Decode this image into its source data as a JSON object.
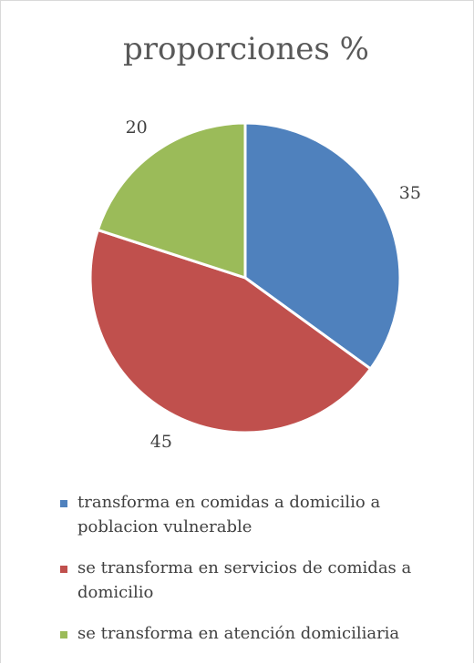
{
  "chart_data": {
    "type": "pie",
    "title": "proporciones %",
    "labels": [
      "transforma en comidas a domicilio a poblacion vulnerable",
      "se transforma en servicios de comidas a domicilio",
      "se transforma en atención domiciliaria"
    ],
    "values": [
      35,
      45,
      20
    ],
    "colors": [
      "#4F81BD",
      "#C0504D",
      "#9BBB59"
    ],
    "start_angle": "12 o'clock, clockwise",
    "data_labels": "outside",
    "legend": "bottom"
  }
}
